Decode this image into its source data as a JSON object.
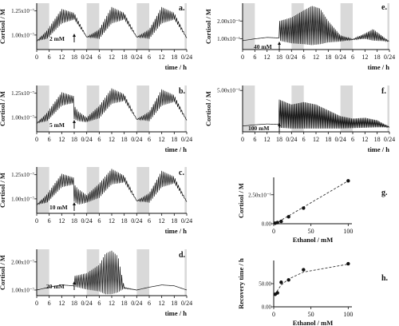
{
  "figure": {
    "x_ticks": [
      "0",
      "6",
      "12",
      "18",
      "0/24",
      "6",
      "12",
      "18",
      "0/24",
      "6",
      "12",
      "18",
      "0/24"
    ],
    "x_label": "time / h",
    "y_label": "Cortisol / M",
    "shade_color": "#d9d9d9",
    "line_color": "#111111"
  },
  "chart_data": [
    {
      "type": "line",
      "panel": "a.",
      "annotation": "2 mM",
      "y_ticks": [
        "1.00x10⁻⁷",
        "1.25x10⁻⁷"
      ],
      "y_tick_values": [
        1.0,
        1.25
      ],
      "ylim": [
        0.85,
        1.33
      ],
      "x_range": [
        0,
        72
      ],
      "shaded_intervals": [
        [
          0,
          6
        ],
        [
          24,
          30
        ],
        [
          48,
          54
        ],
        [
          71,
          72
        ]
      ],
      "perturbation_time": 18,
      "oscillation": {
        "period_h": 0.8
      },
      "envelope_hours": [
        0,
        5,
        12,
        18,
        24,
        30,
        36,
        42,
        48,
        54,
        60,
        66,
        72
      ],
      "envelope_low": [
        0.94,
        0.96,
        1.12,
        1.16,
        0.98,
        0.96,
        1.12,
        1.16,
        0.98,
        0.96,
        1.12,
        1.16,
        0.97
      ],
      "envelope_high": [
        0.94,
        1.05,
        1.27,
        1.23,
        0.98,
        1.06,
        1.29,
        1.23,
        0.98,
        1.06,
        1.29,
        1.23,
        0.97
      ]
    },
    {
      "type": "line",
      "panel": "b.",
      "annotation": "5 mM",
      "y_ticks": [
        "1.00x10⁻⁷",
        "1.25x10⁻⁷"
      ],
      "y_tick_values": [
        1.0,
        1.25
      ],
      "ylim": [
        0.85,
        1.33
      ],
      "x_range": [
        0,
        72
      ],
      "shaded_intervals": [
        [
          0,
          6
        ],
        [
          24,
          30
        ],
        [
          48,
          54
        ],
        [
          71,
          72
        ]
      ],
      "perturbation_time": 18,
      "oscillation": {
        "period_h": 0.8
      },
      "envelope_hours": [
        0,
        5,
        12,
        17.9,
        18,
        20,
        24,
        30,
        36,
        42,
        48,
        54,
        60,
        66,
        72
      ],
      "envelope_low": [
        0.94,
        0.96,
        1.12,
        1.15,
        0.98,
        0.96,
        0.95,
        0.99,
        1.14,
        1.17,
        0.98,
        0.96,
        1.12,
        1.16,
        0.97
      ],
      "envelope_high": [
        0.94,
        1.05,
        1.26,
        1.22,
        1.12,
        1.06,
        1.0,
        1.12,
        1.3,
        1.24,
        0.98,
        1.06,
        1.29,
        1.23,
        0.97
      ]
    },
    {
      "type": "line",
      "panel": "c.",
      "annotation": "10 mM",
      "y_ticks": [
        "1.00x10⁻⁷",
        "1.25x10⁻⁷"
      ],
      "y_tick_values": [
        1.0,
        1.25
      ],
      "ylim": [
        0.85,
        1.33
      ],
      "x_range": [
        0,
        72
      ],
      "shaded_intervals": [
        [
          0,
          6
        ],
        [
          24,
          30
        ],
        [
          48,
          54
        ],
        [
          71,
          72
        ]
      ],
      "perturbation_time": 18,
      "oscillation": {
        "period_h": 0.8
      },
      "envelope_hours": [
        0,
        5,
        12,
        17.9,
        18,
        20,
        24,
        30,
        36,
        42,
        48,
        54,
        60,
        66,
        72
      ],
      "envelope_low": [
        0.94,
        0.96,
        1.12,
        1.15,
        0.97,
        0.94,
        0.96,
        1.01,
        1.15,
        1.17,
        0.98,
        0.96,
        1.12,
        1.16,
        0.97
      ],
      "envelope_high": [
        0.94,
        1.05,
        1.26,
        1.22,
        1.15,
        1.1,
        1.04,
        1.16,
        1.31,
        1.24,
        0.98,
        1.06,
        1.29,
        1.23,
        0.97
      ]
    },
    {
      "type": "line",
      "panel": "d.",
      "annotation": "20 mM",
      "y_ticks": [
        "1.00x10⁻⁷",
        "2.00x10⁻⁷"
      ],
      "y_tick_values": [
        1.0,
        2.0
      ],
      "ylim": [
        0.8,
        2.45
      ],
      "x_range": [
        0,
        72
      ],
      "shaded_intervals": [
        [
          0,
          6
        ],
        [
          24,
          30
        ],
        [
          48,
          54
        ],
        [
          71,
          72
        ]
      ],
      "perturbation_time": 18,
      "oscillation": {
        "period_h": 0.8
      },
      "envelope_hours": [
        0,
        6,
        12,
        17.9,
        18,
        24,
        30,
        33,
        36,
        39,
        42,
        48,
        54,
        60,
        66,
        72
      ],
      "envelope_low": [
        1.0,
        1.1,
        1.18,
        1.15,
        1.12,
        1.02,
        0.95,
        0.85,
        0.85,
        0.92,
        1.05,
        1.0,
        1.1,
        1.18,
        1.15,
        1.0
      ],
      "envelope_high": [
        1.0,
        1.1,
        1.18,
        1.15,
        1.5,
        1.6,
        1.9,
        2.3,
        2.4,
        2.2,
        1.1,
        1.0,
        1.1,
        1.18,
        1.15,
        1.0
      ]
    },
    {
      "type": "line",
      "panel": "e.",
      "annotation": "40 mM",
      "y_ticks": [
        "1.00x10⁻⁶",
        "2.00x10⁻⁶"
      ],
      "y_tick_values": [
        1.0,
        2.0
      ],
      "ylim": [
        0.4,
        3.0
      ],
      "x_range": [
        0,
        72
      ],
      "shaded_intervals": [
        [
          0,
          6
        ],
        [
          24,
          30
        ],
        [
          48,
          54
        ],
        [
          71,
          72
        ]
      ],
      "perturbation_time": 18,
      "oscillation": {
        "period_h": 0.7
      },
      "envelope_hours": [
        0,
        6,
        12,
        17.9,
        18,
        24,
        30,
        34,
        38,
        42,
        48,
        54,
        60,
        64,
        68,
        72
      ],
      "envelope_low": [
        0.9,
        1.0,
        1.08,
        1.05,
        0.9,
        0.75,
        0.7,
        0.65,
        0.7,
        0.8,
        0.85,
        0.95,
        1.0,
        0.9,
        0.88,
        0.85
      ],
      "envelope_high": [
        0.9,
        1.0,
        1.08,
        1.05,
        2.0,
        2.2,
        2.6,
        2.85,
        2.7,
        2.0,
        1.2,
        0.98,
        1.3,
        1.55,
        1.2,
        0.85
      ]
    },
    {
      "type": "line",
      "panel": "f.",
      "annotation": "100 mM",
      "y_ticks": [
        "5.00x10⁻⁶"
      ],
      "y_tick_values": [
        5.0
      ],
      "ylim": [
        0.0,
        5.6
      ],
      "x_range": [
        0,
        72
      ],
      "shaded_intervals": [
        [
          0,
          6
        ],
        [
          24,
          30
        ],
        [
          48,
          54
        ],
        [
          71,
          72
        ]
      ],
      "perturbation_time": 18,
      "oscillation": {
        "period_h": 0.6
      },
      "envelope_hours": [
        0,
        6,
        12,
        17.9,
        18,
        24,
        30,
        36,
        42,
        48,
        54,
        60,
        66,
        72
      ],
      "envelope_low": [
        0.7,
        0.85,
        0.95,
        0.9,
        0.5,
        0.4,
        0.4,
        0.4,
        0.4,
        0.4,
        0.45,
        0.5,
        0.55,
        0.55
      ],
      "envelope_high": [
        0.7,
        0.85,
        0.95,
        0.9,
        3.9,
        3.3,
        3.6,
        3.3,
        2.6,
        1.9,
        1.6,
        1.7,
        1.4,
        0.6
      ]
    },
    {
      "type": "scatter",
      "panel": "g.",
      "x": [
        2,
        5,
        10,
        20,
        40,
        100
      ],
      "y": [
        0.05,
        0.1,
        0.2,
        0.6,
        1.35,
        3.7
      ],
      "fit_line": [
        [
          2,
          0.0
        ],
        [
          100,
          3.7
        ]
      ],
      "xlim": [
        0,
        105
      ],
      "ylim": [
        0,
        4.0
      ],
      "x_ticks": [
        "0",
        "50",
        "100"
      ],
      "x_tick_values": [
        0,
        50,
        100
      ],
      "y_ticks": [
        "0.00",
        "2.50x10⁻⁶"
      ],
      "y_tick_values": [
        0.0,
        2.5
      ],
      "xlabel": "Ethanol / mM",
      "ylabel": "Cortisol / M"
    },
    {
      "type": "scatter",
      "panel": "h.",
      "x": [
        2,
        5,
        10,
        20,
        40,
        100
      ],
      "y": [
        27,
        30,
        53,
        58,
        80,
        93
      ],
      "fit_line": [
        [
          2,
          25
        ],
        [
          5,
          35
        ],
        [
          10,
          47
        ],
        [
          20,
          60
        ],
        [
          40,
          75
        ],
        [
          100,
          92
        ]
      ],
      "xlim": [
        0,
        105
      ],
      "ylim": [
        0,
        100
      ],
      "x_ticks": [
        "0",
        "50",
        "100"
      ],
      "x_tick_values": [
        0,
        50,
        100
      ],
      "y_ticks": [
        "0.00",
        "50.00"
      ],
      "y_tick_values": [
        0,
        50
      ],
      "xlabel": "Ethanol / mM",
      "ylabel": "Recovery time / h"
    }
  ]
}
